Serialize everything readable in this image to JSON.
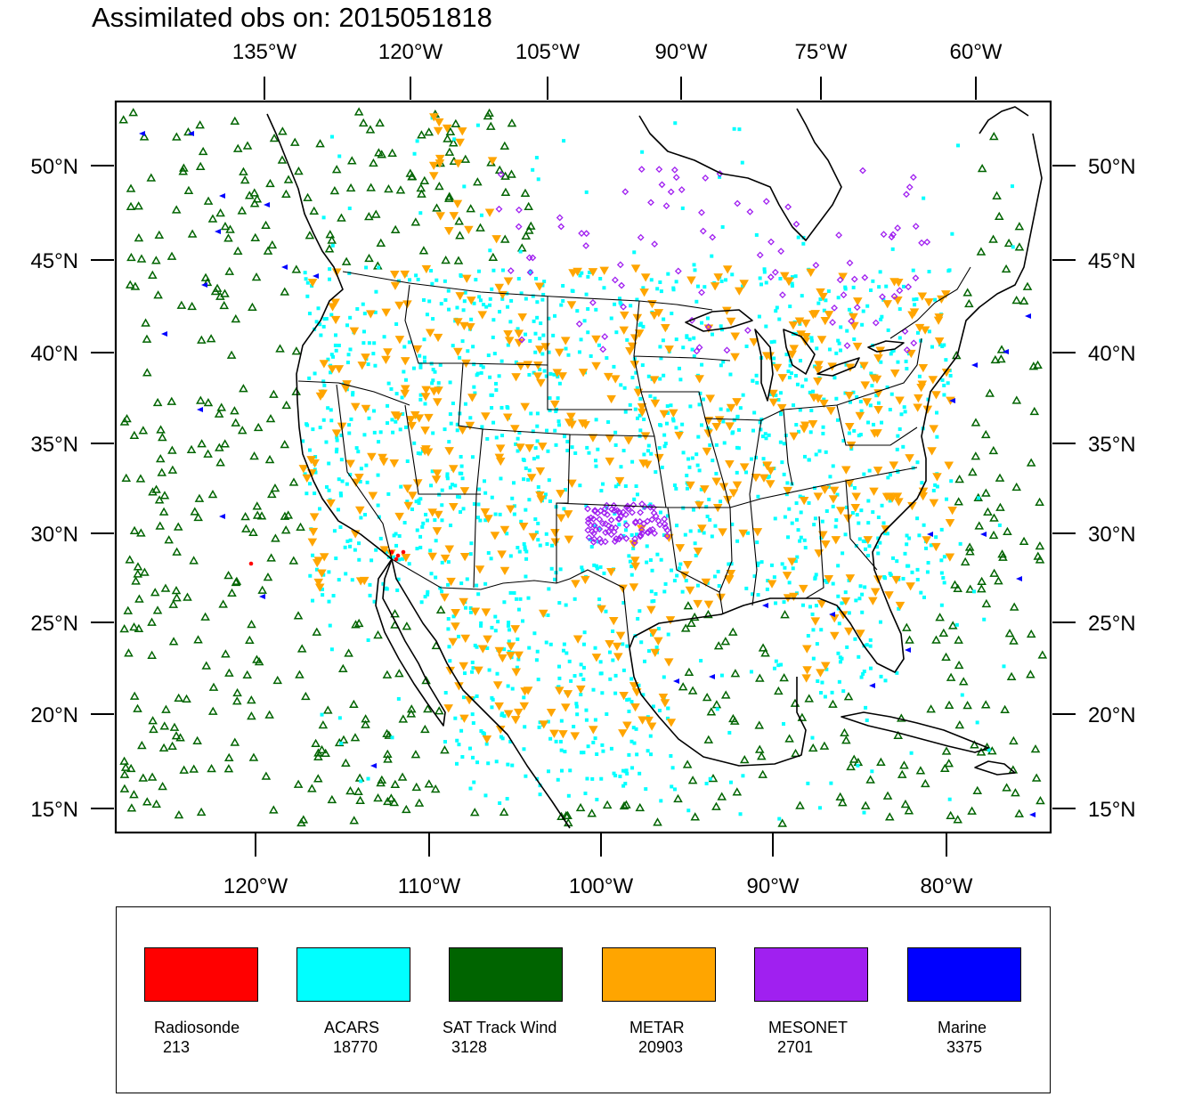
{
  "title": "Assimilated obs on: 2015051818",
  "top_lon_labels": [
    "135°W",
    "120°W",
    "105°W",
    "90°W",
    "75°W",
    "60°W"
  ],
  "bottom_lon_labels": [
    "120°W",
    "110°W",
    "100°W",
    "90°W",
    "80°W"
  ],
  "lat_labels": [
    "50°N",
    "45°N",
    "40°N",
    "35°N",
    "30°N",
    "25°N",
    "20°N",
    "15°N"
  ],
  "legend": [
    {
      "name": "Radiosonde",
      "count": "213",
      "color": "#ff0000"
    },
    {
      "name": "ACARS",
      "count": "18770",
      "color": "#00ffff"
    },
    {
      "name": "SAT Track Wind",
      "count": "3128",
      "color": "#006400"
    },
    {
      "name": "METAR",
      "count": "20903",
      "color": "#ffa500"
    },
    {
      "name": "MESONET",
      "count": "2701",
      "color": "#a020f0"
    },
    {
      "name": "Marine",
      "count": "3375",
      "color": "#0000ff"
    }
  ],
  "map_layers": {
    "coastline_color": "#000000",
    "marker_shapes": {
      "Radiosonde": "filled-dot",
      "ACARS": "filled-square",
      "SAT Track Wind": "open-triangle-up",
      "METAR": "filled-triangle-down",
      "MESONET": "open-diamond",
      "Marine": "filled-triangle-left"
    }
  }
}
